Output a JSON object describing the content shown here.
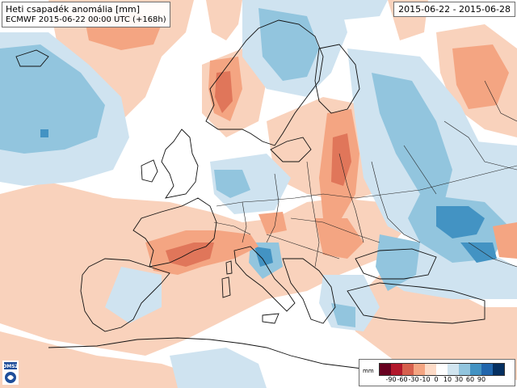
{
  "title": "Heti csapadék anomália [mm]",
  "subtitle": "ECMWF 2015-06-22 00:00 UTC (+168h)",
  "date_range": "2015-06-22 - 2015-06-28",
  "legend": {
    "unit": "mm",
    "ticks": [
      "-90",
      "-60",
      "-30",
      "-10",
      "0",
      "10",
      "30",
      "60",
      "90"
    ],
    "colors": [
      "#67001f",
      "#b2182b",
      "#d6604d",
      "#f4a582",
      "#fddbc7",
      "#ffffff",
      "#d1e5f0",
      "#92c5de",
      "#4393c3",
      "#2166ac",
      "#053061"
    ]
  },
  "colors": {
    "pos_light": "#f9d2bc",
    "pos_mid": "#f4a582",
    "pos_strong": "#e0765a",
    "neg_light": "#cfe3f0",
    "neg_mid": "#92c5de",
    "neg_strong": "#4393c3",
    "neg_deep": "#2166ac",
    "coast": "#111111",
    "border": "#222222"
  },
  "logo": "omsz-logo"
}
